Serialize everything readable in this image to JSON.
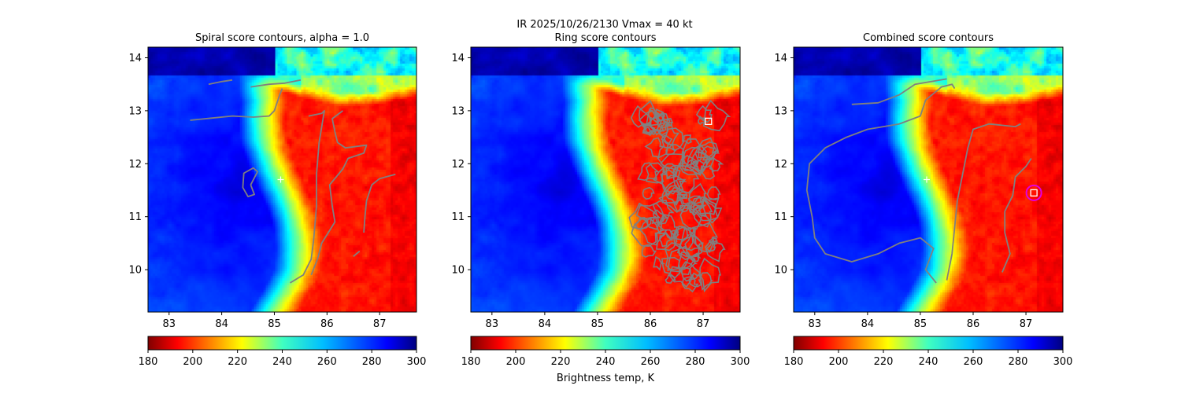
{
  "figure": {
    "suptitle_line1": "IR  2025/10/26/2130    Vmax = 40 kt",
    "colorbar_label": "Brightness temp, K"
  },
  "colormap": "jet",
  "colors": {
    "contour": "#808080",
    "center_marker": "#ffffff",
    "best_center_circle": "#e000e0",
    "best_center_square": "#ffffff"
  },
  "chart_data": [
    {
      "type": "heatmap",
      "title": "Spiral score contours, alpha =  1.0",
      "xlim": [
        82.6,
        87.7
      ],
      "ylim": [
        9.2,
        14.2
      ],
      "xticks": [
        83,
        84,
        85,
        86,
        87
      ],
      "yticks": [
        10,
        11,
        12,
        13,
        14
      ],
      "colorbar": {
        "vmin": 180,
        "vmax": 300,
        "ticks": [
          180,
          200,
          220,
          240,
          260,
          280,
          300
        ]
      },
      "markers": [
        {
          "kind": "plus",
          "x": 85.12,
          "y": 11.7
        }
      ],
      "contours": [
        [
          [
            83.4,
            12.82
          ],
          [
            83.8,
            12.86
          ],
          [
            84.2,
            12.9
          ],
          [
            84.6,
            12.88
          ],
          [
            84.9,
            12.9
          ],
          [
            85.0,
            13.0
          ],
          [
            85.1,
            13.3
          ],
          [
            85.15,
            13.42
          ]
        ],
        [
          [
            83.75,
            13.5
          ],
          [
            84.0,
            13.55
          ],
          [
            84.2,
            13.58
          ]
        ],
        [
          [
            84.55,
            13.45
          ],
          [
            84.9,
            13.5
          ],
          [
            85.2,
            13.52
          ],
          [
            85.5,
            13.58
          ]
        ],
        [
          [
            84.55,
            11.6
          ],
          [
            84.68,
            11.85
          ],
          [
            84.6,
            11.92
          ],
          [
            84.42,
            11.82
          ],
          [
            84.4,
            11.55
          ],
          [
            84.5,
            11.38
          ],
          [
            84.62,
            11.42
          ],
          [
            84.55,
            11.6
          ]
        ],
        [
          [
            85.65,
            12.9
          ],
          [
            85.9,
            12.95
          ],
          [
            85.95,
            13.0
          ],
          [
            85.85,
            12.4
          ],
          [
            85.8,
            11.8
          ],
          [
            85.8,
            11.2
          ],
          [
            85.75,
            10.6
          ],
          [
            85.7,
            10.2
          ],
          [
            85.55,
            9.9
          ],
          [
            85.3,
            9.75
          ]
        ],
        [
          [
            86.3,
            13.0
          ],
          [
            86.1,
            12.85
          ],
          [
            86.15,
            12.6
          ],
          [
            86.2,
            12.4
          ],
          [
            86.35,
            12.3
          ],
          [
            86.75,
            12.35
          ],
          [
            86.7,
            12.2
          ],
          [
            86.4,
            12.1
          ],
          [
            86.3,
            11.9
          ],
          [
            86.05,
            11.6
          ],
          [
            86.1,
            11.2
          ],
          [
            86.15,
            10.9
          ],
          [
            85.9,
            10.5
          ],
          [
            85.82,
            10.2
          ],
          [
            85.7,
            9.9
          ]
        ],
        [
          [
            87.3,
            11.8
          ],
          [
            87.0,
            11.72
          ],
          [
            86.85,
            11.6
          ],
          [
            86.75,
            11.3
          ],
          [
            86.72,
            11.0
          ],
          [
            86.7,
            10.7
          ]
        ],
        [
          [
            86.5,
            10.25
          ],
          [
            86.62,
            10.35
          ]
        ]
      ]
    },
    {
      "type": "heatmap",
      "title": "Ring score contours",
      "xlim": [
        82.6,
        87.7
      ],
      "ylim": [
        9.2,
        14.2
      ],
      "xticks": [
        83,
        84,
        85,
        86,
        87
      ],
      "yticks": [
        10,
        11,
        12,
        13,
        14
      ],
      "colorbar": {
        "vmin": 180,
        "vmax": 300,
        "ticks": [
          180,
          200,
          220,
          240,
          260,
          280,
          300
        ]
      },
      "markers": [
        {
          "kind": "square",
          "x": 87.1,
          "y": 12.8
        }
      ],
      "ring_region": {
        "x_min": 85.4,
        "x_max": 87.4,
        "y_min": 9.7,
        "y_max": 13.0
      }
    },
    {
      "type": "heatmap",
      "title": "Combined score contours",
      "xlim": [
        82.6,
        87.7
      ],
      "ylim": [
        9.2,
        14.2
      ],
      "xticks": [
        83,
        84,
        85,
        86,
        87
      ],
      "yticks": [
        10,
        11,
        12,
        13,
        14
      ],
      "colorbar": {
        "vmin": 180,
        "vmax": 300,
        "ticks": [
          180,
          200,
          220,
          240,
          260,
          280,
          300
        ]
      },
      "markers": [
        {
          "kind": "plus",
          "x": 85.12,
          "y": 11.7
        },
        {
          "kind": "circle",
          "x": 87.15,
          "y": 11.45
        },
        {
          "kind": "square",
          "x": 87.15,
          "y": 11.45
        }
      ],
      "contours": [
        [
          [
            83.7,
            13.12
          ],
          [
            84.2,
            13.15
          ],
          [
            84.6,
            13.3
          ],
          [
            84.9,
            13.5
          ],
          [
            85.5,
            13.6
          ]
        ],
        [
          [
            85.3,
            9.75
          ],
          [
            85.1,
            10.0
          ],
          [
            85.25,
            10.4
          ],
          [
            85.0,
            10.6
          ],
          [
            84.6,
            10.5
          ],
          [
            84.2,
            10.3
          ],
          [
            83.7,
            10.15
          ],
          [
            83.2,
            10.3
          ],
          [
            83.0,
            10.6
          ],
          [
            82.95,
            11.0
          ],
          [
            82.85,
            11.5
          ],
          [
            82.9,
            12.0
          ],
          [
            83.2,
            12.3
          ],
          [
            83.6,
            12.5
          ],
          [
            84.0,
            12.65
          ],
          [
            84.6,
            12.75
          ],
          [
            85.0,
            12.9
          ],
          [
            85.1,
            13.2
          ],
          [
            85.4,
            13.45
          ],
          [
            85.6,
            13.5
          ],
          [
            85.65,
            13.42
          ]
        ],
        [
          [
            85.5,
            9.8
          ],
          [
            85.6,
            10.3
          ],
          [
            85.65,
            10.8
          ],
          [
            85.7,
            11.3
          ],
          [
            85.8,
            11.8
          ],
          [
            85.9,
            12.3
          ],
          [
            86.0,
            12.65
          ],
          [
            86.3,
            12.75
          ],
          [
            86.8,
            12.7
          ],
          [
            86.9,
            12.75
          ]
        ],
        [
          [
            86.55,
            9.95
          ],
          [
            86.7,
            10.3
          ],
          [
            86.6,
            10.7
          ],
          [
            86.6,
            11.1
          ],
          [
            86.75,
            11.4
          ],
          [
            86.8,
            11.75
          ],
          [
            87.0,
            11.95
          ],
          [
            87.1,
            12.1
          ]
        ]
      ]
    }
  ]
}
